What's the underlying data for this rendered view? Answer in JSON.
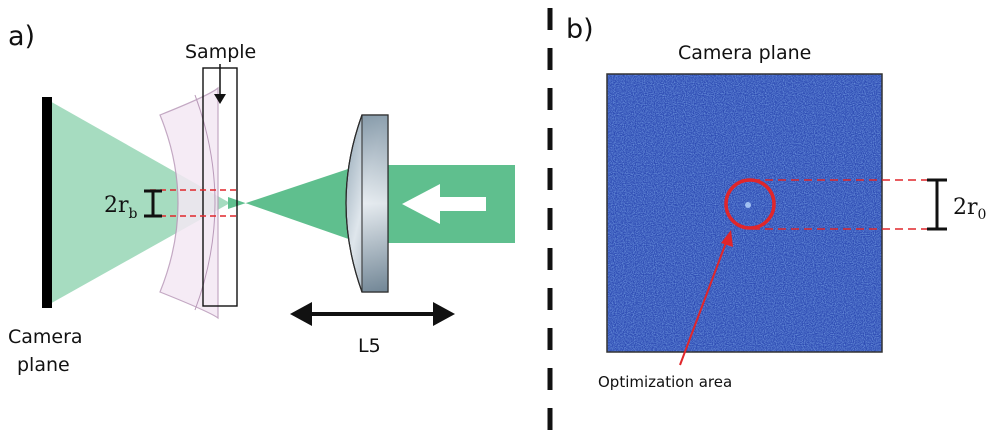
{
  "panel_a": {
    "label": "a)",
    "sample_label": "Sample",
    "camera_label_line1": "Camera",
    "camera_label_line2": "plane",
    "lens_label": "L5",
    "beam_radius_label": "2r",
    "beam_radius_subscript": "b"
  },
  "panel_b": {
    "label": "b)",
    "title": "Camera plane",
    "radius_label": "2r",
    "radius_subscript": "0",
    "optimization_label": "Optimization area"
  },
  "colors": {
    "beam_light": "#a6dcc0",
    "beam_dark": "#5fbf8e",
    "camera_bar": "#000000",
    "dashed_red": "#e0262b",
    "speckle_base": "#2f4db4",
    "speckle_light": "#6fa9e8",
    "optimization_circle": "#e0262b"
  }
}
